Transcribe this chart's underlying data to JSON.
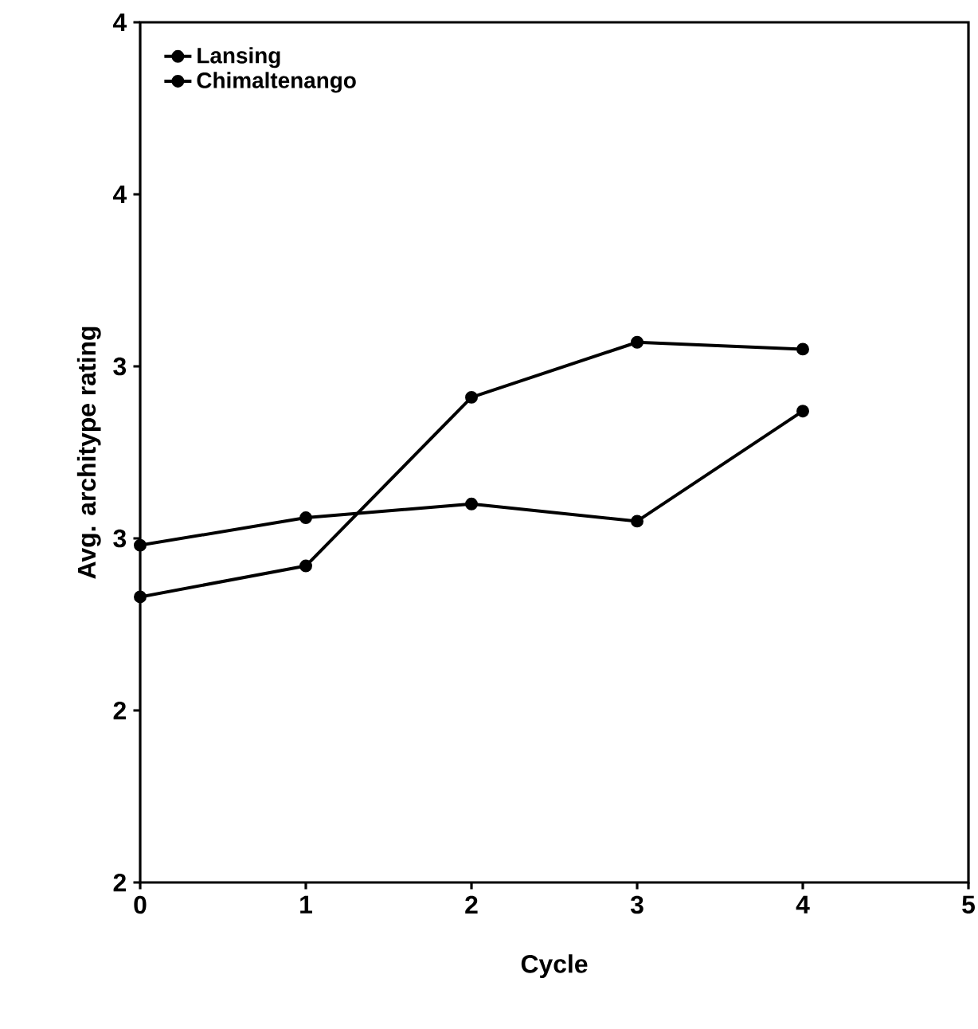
{
  "chart_data": {
    "type": "line",
    "xlabel": "Cycle",
    "ylabel": "Avg. architype rating",
    "x": [
      0,
      1,
      2,
      3,
      4
    ],
    "series": [
      {
        "name": "Lansing",
        "color": "#000000",
        "values": [
          2.98,
          3.06,
          3.1,
          3.05,
          3.37
        ]
      },
      {
        "name": "Chimaltenango",
        "color": "#000000",
        "values": [
          2.83,
          2.92,
          3.41,
          3.57,
          3.55
        ]
      }
    ],
    "xlim": [
      0,
      5
    ],
    "xticks": [
      0,
      1,
      2,
      3,
      4,
      5
    ],
    "ylim": [
      2,
      4.5
    ],
    "yticks": [
      {
        "value": 2,
        "label": "2"
      },
      {
        "value": 2.5,
        "label": "2"
      },
      {
        "value": 3,
        "label": "3"
      },
      {
        "value": 3.5,
        "label": "3"
      },
      {
        "value": 4,
        "label": "4"
      },
      {
        "value": 4.5,
        "label": "4"
      }
    ],
    "grid": false,
    "legend": "top left",
    "marker": "circle",
    "line_style": "solid"
  }
}
